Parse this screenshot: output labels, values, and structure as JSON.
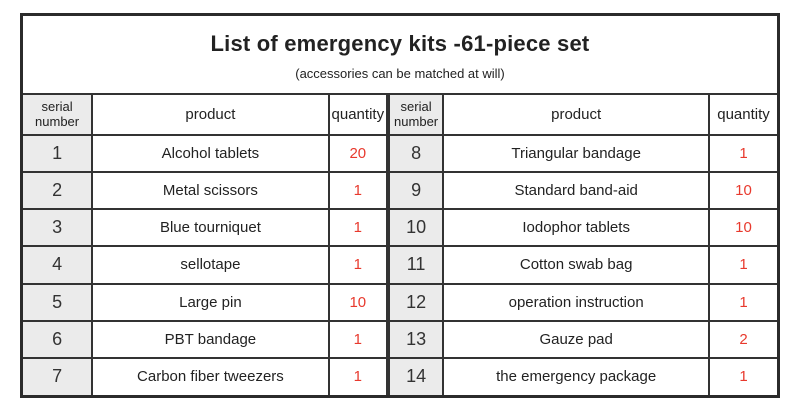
{
  "title": "List of emergency kits -61-piece set",
  "subtitle": "(accessories can be matched at will)",
  "columns": {
    "serial": "serial number",
    "product": "product",
    "quantity": "quantity"
  },
  "tables": {
    "left": {
      "rows": [
        {
          "serial": "1",
          "product": "Alcohol tablets",
          "quantity": "20"
        },
        {
          "serial": "2",
          "product": "Metal scissors",
          "quantity": "1"
        },
        {
          "serial": "3",
          "product": "Blue tourniquet",
          "quantity": "1"
        },
        {
          "serial": "4",
          "product": "sellotape",
          "quantity": "1"
        },
        {
          "serial": "5",
          "product": "Large pin",
          "quantity": "10"
        },
        {
          "serial": "6",
          "product": "PBT bandage",
          "quantity": "1"
        },
        {
          "serial": "7",
          "product": "Carbon fiber tweezers",
          "quantity": "1"
        }
      ]
    },
    "right": {
      "rows": [
        {
          "serial": "8",
          "product": "Triangular bandage",
          "quantity": "1"
        },
        {
          "serial": "9",
          "product": "Standard band-aid",
          "quantity": "10"
        },
        {
          "serial": "10",
          "product": "Iodophor tablets",
          "quantity": "10"
        },
        {
          "serial": "11",
          "product": "Cotton swab bag",
          "quantity": "1"
        },
        {
          "serial": "12",
          "product": "operation instruction",
          "quantity": "1"
        },
        {
          "serial": "13",
          "product": "Gauze pad",
          "quantity": "2"
        },
        {
          "serial": "14",
          "product": "the emergency package",
          "quantity": "1"
        }
      ]
    }
  },
  "colors": {
    "quantity_red": "#e8392d",
    "serial_bg": "#ebebeb",
    "border_dark": "#2b2b2b",
    "border_cell": "#333333"
  }
}
